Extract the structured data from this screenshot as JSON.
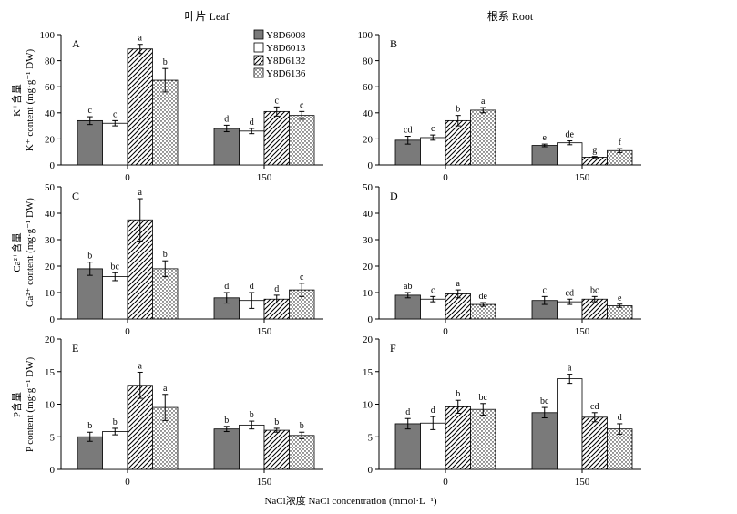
{
  "figure": {
    "col_titles": [
      "叶片 Leaf",
      "根系 Root"
    ],
    "xlabel": "NaCl浓度 NaCl concentration (mmol·L⁻¹)",
    "row_ylabels": [
      {
        "cn": "K⁺含量",
        "en": "K⁺ content (mg·g⁻¹ DW)"
      },
      {
        "cn": "Ca²⁺含量",
        "en": "Ca²⁺ content (mg·g⁻¹ DW)"
      },
      {
        "cn": "P含量",
        "en": "P content (mg·g⁻¹ DW)"
      }
    ],
    "legend": [
      "Y8D6008",
      "Y8D6013",
      "Y8D6132",
      "Y8D6136"
    ],
    "series_fills": [
      "gray",
      "white",
      "diagonal-hatch",
      "dots"
    ],
    "colors": {
      "gray_fill": "#7a7a7a",
      "line": "#000000"
    }
  },
  "chart_data": [
    {
      "type": "bar",
      "panel": "A",
      "categories": [
        "0",
        "150"
      ],
      "ylim": [
        0,
        100
      ],
      "yticks": [
        0,
        20,
        40,
        60,
        80,
        100
      ],
      "series": [
        {
          "name": "Y8D6008",
          "values": [
            34,
            28
          ],
          "errors": [
            3,
            2.5
          ],
          "letters": [
            "c",
            "d"
          ]
        },
        {
          "name": "Y8D6013",
          "values": [
            32,
            26
          ],
          "errors": [
            2,
            2
          ],
          "letters": [
            "c",
            "d"
          ]
        },
        {
          "name": "Y8D6132",
          "values": [
            89,
            41
          ],
          "errors": [
            3.5,
            3.5
          ],
          "letters": [
            "a",
            "c"
          ]
        },
        {
          "name": "Y8D6136",
          "values": [
            65,
            38
          ],
          "errors": [
            9,
            3
          ],
          "letters": [
            "b",
            "c"
          ]
        }
      ]
    },
    {
      "type": "bar",
      "panel": "B",
      "categories": [
        "0",
        "150"
      ],
      "ylim": [
        0,
        100
      ],
      "yticks": [
        0,
        20,
        40,
        60,
        80,
        100
      ],
      "series": [
        {
          "name": "Y8D6008",
          "values": [
            19,
            15
          ],
          "errors": [
            3,
            1
          ],
          "letters": [
            "cd",
            "e"
          ]
        },
        {
          "name": "Y8D6013",
          "values": [
            21,
            17
          ],
          "errors": [
            2,
            1.5
          ],
          "letters": [
            "c",
            "de"
          ]
        },
        {
          "name": "Y8D6132",
          "values": [
            34,
            6
          ],
          "errors": [
            4,
            0.5
          ],
          "letters": [
            "b",
            "g"
          ]
        },
        {
          "name": "Y8D6136",
          "values": [
            42,
            11
          ],
          "errors": [
            2,
            1.5
          ],
          "letters": [
            "a",
            "f"
          ]
        }
      ]
    },
    {
      "type": "bar",
      "panel": "C",
      "categories": [
        "0",
        "150"
      ],
      "ylim": [
        0,
        50
      ],
      "yticks": [
        0,
        10,
        20,
        30,
        40,
        50
      ],
      "series": [
        {
          "name": "Y8D6008",
          "values": [
            19,
            8
          ],
          "errors": [
            2.5,
            2
          ],
          "letters": [
            "b",
            "d"
          ]
        },
        {
          "name": "Y8D6013",
          "values": [
            16,
            7
          ],
          "errors": [
            1.5,
            3
          ],
          "letters": [
            "bc",
            "d"
          ]
        },
        {
          "name": "Y8D6132",
          "values": [
            37.5,
            7.5
          ],
          "errors": [
            8,
            1.5
          ],
          "letters": [
            "a",
            "d"
          ]
        },
        {
          "name": "Y8D6136",
          "values": [
            19,
            11
          ],
          "errors": [
            3,
            2.5
          ],
          "letters": [
            "b",
            "c"
          ]
        }
      ]
    },
    {
      "type": "bar",
      "panel": "D",
      "categories": [
        "0",
        "150"
      ],
      "ylim": [
        0,
        50
      ],
      "yticks": [
        0,
        10,
        20,
        30,
        40,
        50
      ],
      "series": [
        {
          "name": "Y8D6008",
          "values": [
            9,
            7
          ],
          "errors": [
            1,
            1.5
          ],
          "letters": [
            "ab",
            "c"
          ]
        },
        {
          "name": "Y8D6013",
          "values": [
            7.5,
            6.5
          ],
          "errors": [
            1,
            1
          ],
          "letters": [
            "c",
            "cd"
          ]
        },
        {
          "name": "Y8D6132",
          "values": [
            9.5,
            7.5
          ],
          "errors": [
            1.5,
            1
          ],
          "letters": [
            "a",
            "bc"
          ]
        },
        {
          "name": "Y8D6136",
          "values": [
            5.5,
            5
          ],
          "errors": [
            0.7,
            0.6
          ],
          "letters": [
            "de",
            "e"
          ]
        }
      ]
    },
    {
      "type": "bar",
      "panel": "E",
      "categories": [
        "0",
        "150"
      ],
      "ylim": [
        0,
        20
      ],
      "yticks": [
        0,
        5,
        10,
        15,
        20
      ],
      "series": [
        {
          "name": "Y8D6008",
          "values": [
            5,
            6.2
          ],
          "errors": [
            0.7,
            0.4
          ],
          "letters": [
            "b",
            "b"
          ]
        },
        {
          "name": "Y8D6013",
          "values": [
            5.8,
            6.8
          ],
          "errors": [
            0.5,
            0.6
          ],
          "letters": [
            "b",
            "b"
          ]
        },
        {
          "name": "Y8D6132",
          "values": [
            12.9,
            6
          ],
          "errors": [
            2,
            0.3
          ],
          "letters": [
            "a",
            "b"
          ]
        },
        {
          "name": "Y8D6136",
          "values": [
            9.5,
            5.2
          ],
          "errors": [
            2,
            0.5
          ],
          "letters": [
            "a",
            "b"
          ]
        }
      ]
    },
    {
      "type": "bar",
      "panel": "F",
      "categories": [
        "0",
        "150"
      ],
      "ylim": [
        0,
        20
      ],
      "yticks": [
        0,
        5,
        10,
        15,
        20
      ],
      "series": [
        {
          "name": "Y8D6008",
          "values": [
            7,
            8.7
          ],
          "errors": [
            0.8,
            0.8
          ],
          "letters": [
            "d",
            "bc"
          ]
        },
        {
          "name": "Y8D6013",
          "values": [
            7.1,
            13.9
          ],
          "errors": [
            1,
            0.7
          ],
          "letters": [
            "d",
            "a"
          ]
        },
        {
          "name": "Y8D6132",
          "values": [
            9.6,
            8
          ],
          "errors": [
            1,
            0.7
          ],
          "letters": [
            "b",
            "cd"
          ]
        },
        {
          "name": "Y8D6136",
          "values": [
            9.2,
            6.2
          ],
          "errors": [
            0.9,
            0.8
          ],
          "letters": [
            "bc",
            "d"
          ]
        }
      ]
    }
  ]
}
